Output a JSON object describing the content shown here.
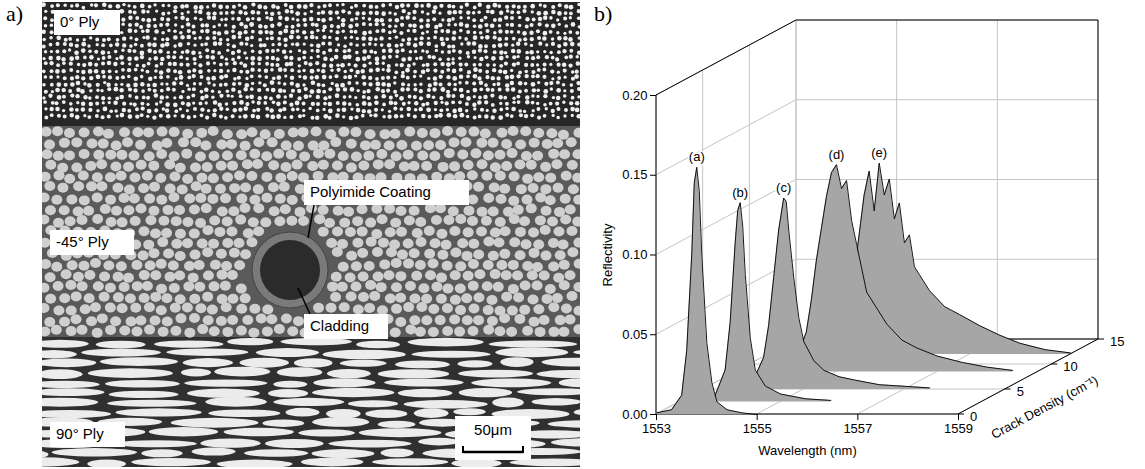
{
  "micrograph": {
    "panel_label": "a)",
    "ply_labels": [
      "0° Ply",
      "-45° Ply",
      "90° Ply"
    ],
    "callouts": [
      "Polyimide Coating",
      "Cladding"
    ],
    "scale_bar": "50μm"
  },
  "chart_data": {
    "type": "waterfall",
    "panel_label": "b)",
    "xlabel": "Wavelength (nm)",
    "ylabel": "Reflectivity",
    "zlabel": "Crack Density (cm⁻¹)",
    "xlim": [
      1553,
      1559
    ],
    "xticks": [
      1553,
      1555,
      1557,
      1559
    ],
    "ylim": [
      0,
      0.2
    ],
    "yticks": [
      {
        "value": 0,
        "label": "0.00"
      },
      {
        "value": 0.05,
        "label": "0.05"
      },
      {
        "value": 0.1,
        "label": "0.10"
      },
      {
        "value": 0.15,
        "label": "0.15"
      },
      {
        "value": 0.2,
        "label": "0.20"
      }
    ],
    "zlim": [
      0,
      15
    ],
    "zticks": [
      0,
      5,
      10,
      15
    ],
    "grid": true,
    "color": "#a6a6a6",
    "series": [
      {
        "name": "(a)",
        "crack_density": 0,
        "x": [
          1553.0,
          1553.3,
          1553.5,
          1553.6,
          1553.7,
          1553.75,
          1553.8,
          1553.85,
          1553.9,
          1554.0,
          1554.1,
          1554.2,
          1554.4,
          1554.7,
          1555.0
        ],
        "values": [
          0.001,
          0.003,
          0.012,
          0.04,
          0.1,
          0.145,
          0.155,
          0.14,
          0.1,
          0.045,
          0.02,
          0.008,
          0.003,
          0.001,
          0
        ]
      },
      {
        "name": "(b)",
        "crack_density": 2.5,
        "x": [
          1553.4,
          1553.7,
          1553.9,
          1554.0,
          1554.1,
          1554.15,
          1554.2,
          1554.25,
          1554.3,
          1554.4,
          1554.5,
          1554.7,
          1555.0,
          1555.5,
          1556.0
        ],
        "values": [
          0.001,
          0.004,
          0.02,
          0.05,
          0.1,
          0.12,
          0.125,
          0.11,
          0.08,
          0.04,
          0.02,
          0.01,
          0.005,
          0.002,
          0.001
        ]
      },
      {
        "name": "(c)",
        "crack_density": 5,
        "x": [
          1553.6,
          1554.0,
          1554.2,
          1554.3,
          1554.4,
          1554.5,
          1554.6,
          1554.65,
          1554.7,
          1554.8,
          1554.9,
          1555.0,
          1555.2,
          1555.4,
          1555.7,
          1556.0,
          1556.5,
          1557.0,
          1557.5
        ],
        "values": [
          0.001,
          0.006,
          0.02,
          0.04,
          0.07,
          0.1,
          0.12,
          0.118,
          0.1,
          0.07,
          0.045,
          0.03,
          0.018,
          0.012,
          0.008,
          0.006,
          0.003,
          0.002,
          0.001
        ]
      },
      {
        "name": "(d)",
        "crack_density": 8.5,
        "x": [
          1553.8,
          1554.2,
          1554.4,
          1554.5,
          1554.6,
          1554.7,
          1554.8,
          1554.9,
          1555.0,
          1555.1,
          1555.2,
          1555.3,
          1555.4,
          1555.5,
          1555.6,
          1555.8,
          1556.0,
          1556.3,
          1556.6,
          1557.0,
          1557.5,
          1558.0,
          1558.5
        ],
        "values": [
          0.001,
          0.008,
          0.025,
          0.045,
          0.07,
          0.09,
          0.11,
          0.125,
          0.13,
          0.115,
          0.12,
          0.095,
          0.08,
          0.065,
          0.05,
          0.04,
          0.03,
          0.02,
          0.015,
          0.01,
          0.006,
          0.003,
          0.001
        ]
      },
      {
        "name": "(e)",
        "crack_density": 12,
        "x": [
          1554.0,
          1554.4,
          1554.6,
          1554.7,
          1554.8,
          1554.9,
          1555.0,
          1555.1,
          1555.2,
          1555.3,
          1555.4,
          1555.5,
          1555.6,
          1555.7,
          1555.8,
          1555.9,
          1556.0,
          1556.2,
          1556.5,
          1556.8,
          1557.2,
          1557.6,
          1558.0,
          1558.5,
          1559.0
        ],
        "values": [
          0.001,
          0.01,
          0.03,
          0.05,
          0.075,
          0.1,
          0.115,
          0.09,
          0.12,
          0.1,
          0.11,
          0.085,
          0.095,
          0.07,
          0.075,
          0.055,
          0.05,
          0.04,
          0.03,
          0.025,
          0.018,
          0.012,
          0.007,
          0.003,
          0.001
        ]
      }
    ]
  }
}
